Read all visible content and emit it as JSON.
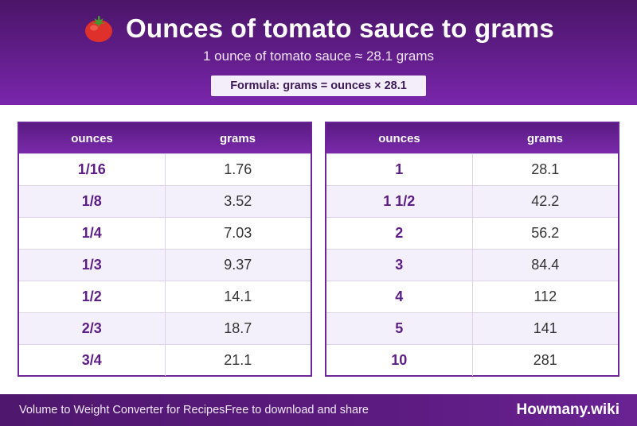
{
  "header": {
    "title": "Ounces of tomato sauce to grams",
    "subtitle": "1 ounce of tomato sauce ≈ 28.1 grams",
    "formula": "Formula: grams = ounces × 28.1",
    "icon": "tomato-icon"
  },
  "tables": [
    {
      "col_ounces": "ounces",
      "col_grams": "grams",
      "rows": [
        {
          "oz": "1/16",
          "g": "1.76"
        },
        {
          "oz": "1/8",
          "g": "3.52"
        },
        {
          "oz": "1/4",
          "g": "7.03"
        },
        {
          "oz": "1/3",
          "g": "9.37"
        },
        {
          "oz": "1/2",
          "g": "14.1"
        },
        {
          "oz": "2/3",
          "g": "18.7"
        },
        {
          "oz": "3/4",
          "g": "21.1"
        }
      ]
    },
    {
      "col_ounces": "ounces",
      "col_grams": "grams",
      "rows": [
        {
          "oz": "1",
          "g": "28.1"
        },
        {
          "oz": "1 1/2",
          "g": "42.2"
        },
        {
          "oz": "2",
          "g": "56.2"
        },
        {
          "oz": "3",
          "g": "84.4"
        },
        {
          "oz": "4",
          "g": "112"
        },
        {
          "oz": "5",
          "g": "141"
        },
        {
          "oz": "10",
          "g": "281"
        }
      ]
    }
  ],
  "footer": {
    "left_text": "Volume to Weight Converter for Recipes",
    "left_text2": "Free to download and share",
    "brand": "Howmany.wiki"
  },
  "colors": {
    "header_purple": "#5e1c85",
    "accent_purple": "#6b2596",
    "row_alt": "#f4f0fb"
  }
}
